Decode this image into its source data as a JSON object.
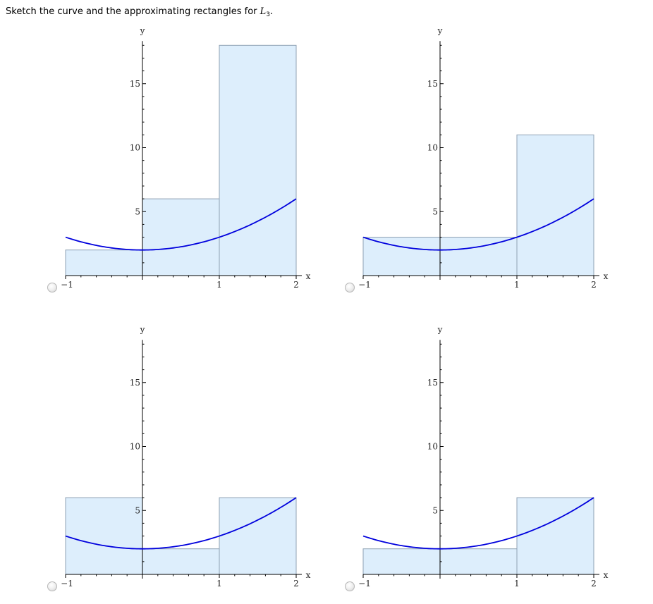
{
  "question": {
    "prefix": "Sketch the curve and the approximating rectangles for ",
    "var": "L",
    "sub": "3",
    "suffix": "."
  },
  "colors": {
    "curve": "#0000dd",
    "rect_fill": "#ddeefc",
    "rect_stroke": "#8fa1b3",
    "axis": "#000000"
  },
  "chart_data": [
    {
      "type": "area",
      "option_id": "A",
      "curve": "y = x^2 + 2",
      "curve_x_range": [
        -1,
        2
      ],
      "xlabel": "x",
      "ylabel": "y",
      "xlim": [
        -1,
        2
      ],
      "ylim": [
        0,
        18
      ],
      "x_ticks": [
        "−1",
        "1",
        "2"
      ],
      "y_ticks": [
        "5",
        "10",
        "15"
      ],
      "rectangles": [
        {
          "x0": -1,
          "x1": 0,
          "height": 2
        },
        {
          "x0": 0,
          "x1": 1,
          "height": 6
        },
        {
          "x0": 1,
          "x1": 2,
          "height": 18
        }
      ]
    },
    {
      "type": "area",
      "option_id": "B",
      "curve": "y = x^2 + 2",
      "curve_x_range": [
        -1,
        2
      ],
      "xlabel": "x",
      "ylabel": "y",
      "xlim": [
        -1,
        2
      ],
      "ylim": [
        0,
        18
      ],
      "x_ticks": [
        "−1",
        "1",
        "2"
      ],
      "y_ticks": [
        "5",
        "10",
        "15"
      ],
      "rectangles": [
        {
          "x0": -1,
          "x1": 0,
          "height": 3
        },
        {
          "x0": 0,
          "x1": 1,
          "height": 3
        },
        {
          "x0": 1,
          "x1": 2,
          "height": 11
        }
      ]
    },
    {
      "type": "area",
      "option_id": "C",
      "curve": "y = x^2 + 2",
      "curve_x_range": [
        -1,
        2
      ],
      "xlabel": "x",
      "ylabel": "y",
      "xlim": [
        -1,
        2
      ],
      "ylim": [
        0,
        18
      ],
      "x_ticks": [
        "−1",
        "1",
        "2"
      ],
      "y_ticks": [
        "5",
        "10",
        "15"
      ],
      "rectangles": [
        {
          "x0": -1,
          "x1": 0,
          "height": 6
        },
        {
          "x0": 0,
          "x1": 1,
          "height": 2
        },
        {
          "x0": 1,
          "x1": 2,
          "height": 6
        }
      ]
    },
    {
      "type": "area",
      "option_id": "D",
      "curve": "y = x^2 + 2",
      "curve_x_range": [
        -1,
        2
      ],
      "xlabel": "x",
      "ylabel": "y",
      "xlim": [
        -1,
        2
      ],
      "ylim": [
        0,
        18
      ],
      "x_ticks": [
        "−1",
        "1",
        "2"
      ],
      "y_ticks": [
        "5",
        "10",
        "15"
      ],
      "rectangles": [
        {
          "x0": -1,
          "x1": 0,
          "height": 2
        },
        {
          "x0": 0,
          "x1": 1,
          "height": 2
        },
        {
          "x0": 1,
          "x1": 2,
          "height": 6
        }
      ]
    }
  ]
}
